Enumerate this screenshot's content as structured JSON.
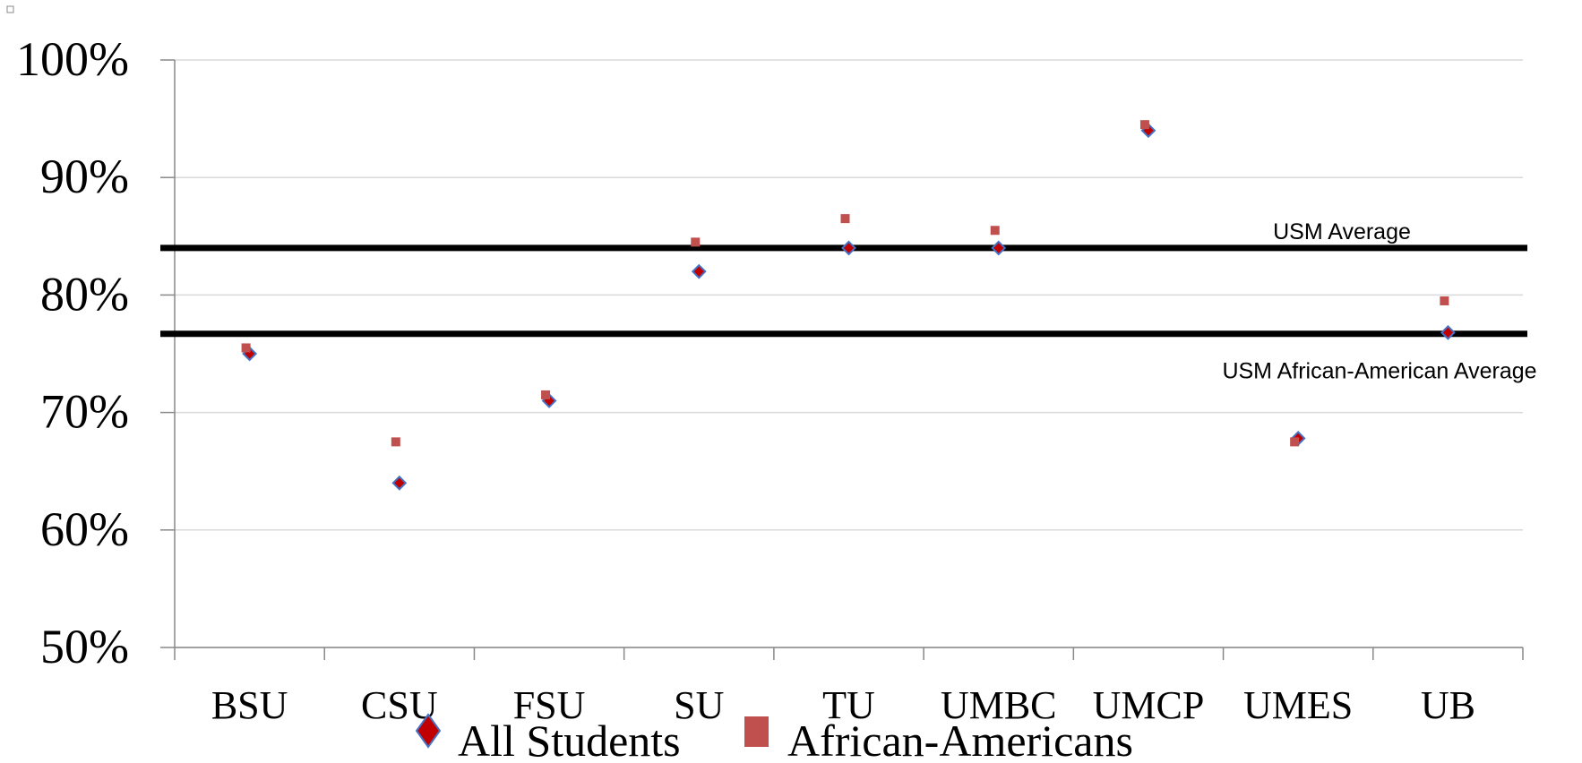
{
  "chart_data": {
    "type": "scatter",
    "categories": [
      "BSU",
      "CSU",
      "FSU",
      "SU",
      "TU",
      "UMBC",
      "UMCP",
      "UMES",
      "UB"
    ],
    "series": [
      {
        "name": "All Students",
        "marker": "diamond",
        "color": "#c00000",
        "edge_color": "#4472c4",
        "values": [
          75,
          64,
          71,
          82,
          84,
          84,
          94,
          67.8,
          76.8
        ]
      },
      {
        "name": "African-Americans",
        "marker": "square",
        "color": "#c0504d",
        "values": [
          75.5,
          67.5,
          71.5,
          84.5,
          86.5,
          85.5,
          94.5,
          67.5,
          79.5
        ]
      }
    ],
    "reference_lines": [
      {
        "label": "USM Average",
        "value": 84,
        "label_position": "above-right"
      },
      {
        "label": "USM African-American  Average",
        "value": 76.7,
        "label_position": "below-right"
      }
    ],
    "y_ticks": [
      "100%",
      "90%",
      "80%",
      "70%",
      "60%",
      "50%"
    ],
    "ylim": [
      50,
      100
    ],
    "grid": true,
    "legend": "bottom-center",
    "title": "",
    "xlabel": "",
    "ylabel": ""
  }
}
